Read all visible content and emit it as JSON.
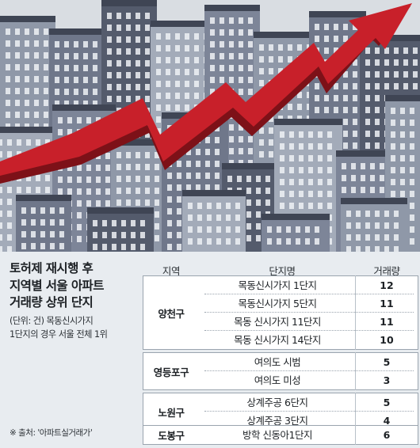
{
  "headline": "토허제 재시행 후\n지역별 서울 아파트\n거래량 상위 단지",
  "subnote": "(단위: 건) 목동신시가지\n1단지의 경우 서울 전체 1위",
  "source": "※ 출처: '아파트실거래가'",
  "chart_data": {
    "type": "table",
    "columns": [
      "지역",
      "단지명",
      "거래량"
    ],
    "groups": [
      {
        "region": "양천구",
        "rows": [
          {
            "complex": "목동신시가지 1단지",
            "volume": 12
          },
          {
            "complex": "목동신시가지 5단지",
            "volume": 11
          },
          {
            "complex": "목동 신시가지 11단지",
            "volume": 11
          },
          {
            "complex": "목동 신시가지 14단지",
            "volume": 10
          }
        ]
      },
      {
        "region": "영등포구",
        "rows": [
          {
            "complex": "여의도 시범",
            "volume": 5
          },
          {
            "complex": "여의도 미성",
            "volume": 3
          }
        ]
      },
      {
        "region": "노원구",
        "rows": [
          {
            "complex": "상계주공 6단지",
            "volume": 5
          },
          {
            "complex": "상계주공 3단지",
            "volume": 4
          }
        ]
      },
      {
        "region": "도봉구",
        "rows": [
          {
            "complex": "방학 신동아1단지",
            "volume": 6
          }
        ]
      }
    ]
  },
  "illustration": {
    "sky_color": "#d9dde2",
    "building_colors": [
      "#8f98a8",
      "#6f778a",
      "#545b6c",
      "#a3abb9",
      "#7d8598"
    ],
    "window_color": "#eef1f5",
    "arrow_color": "#c8202a",
    "arrow_shadow_color": "#7d1118",
    "arrow_icon": "upward-trend-arrow-icon"
  }
}
